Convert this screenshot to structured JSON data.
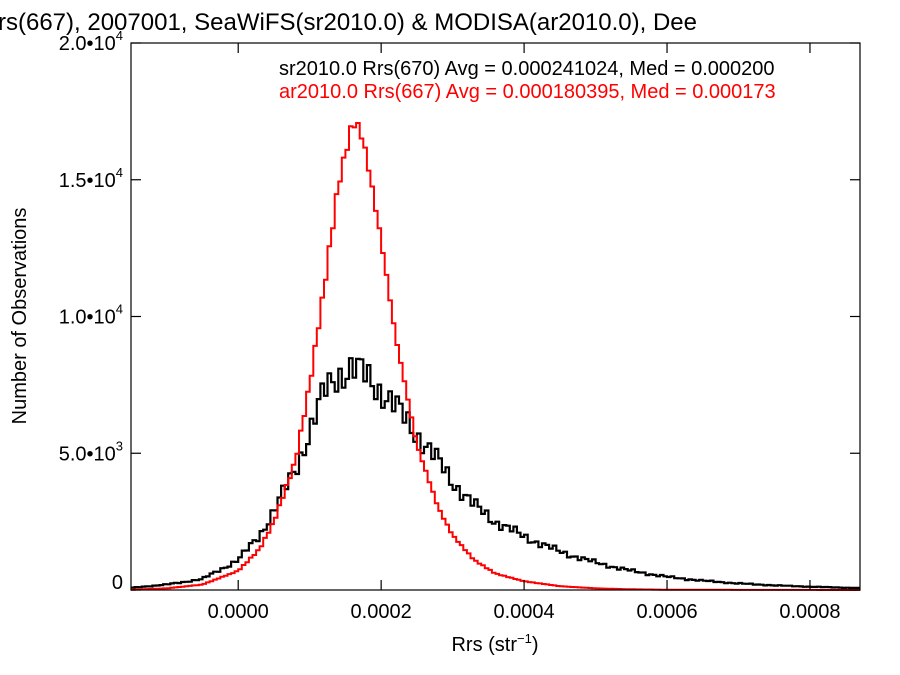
{
  "chart_data": {
    "type": "histogram-step",
    "title": "rs(667), 2007001, SeaWiFS(sr2010.0) & MODISA(ar2010.0), Dee",
    "xlabel": "Rrs (str",
    "xlabel_sup": "−1",
    "xlabel_close": ")",
    "ylabel": "Number of Observations",
    "xlim": [
      -0.00015,
      0.00087
    ],
    "ylim": [
      0,
      20000
    ],
    "x_ticks": [
      {
        "value": 0.0,
        "label": "0.0000"
      },
      {
        "value": 0.0002,
        "label": "0.0002"
      },
      {
        "value": 0.0004,
        "label": "0.0004"
      },
      {
        "value": 0.0006,
        "label": "0.0006"
      },
      {
        "value": 0.0008,
        "label": "0.0008"
      }
    ],
    "y_ticks": [
      {
        "value": 0,
        "mant": "0",
        "exp": ""
      },
      {
        "value": 5000,
        "mant": "5.0•10",
        "exp": "3"
      },
      {
        "value": 10000,
        "mant": "1.0•10",
        "exp": "4"
      },
      {
        "value": 15000,
        "mant": "1.5•10",
        "exp": "4"
      },
      {
        "value": 20000,
        "mant": "2.0•10",
        "exp": "4"
      }
    ],
    "bin_width": 5e-06,
    "legend": [
      {
        "text": "sr2010.0 Rrs(670) Avg = 0.000241024, Med = 0.000200",
        "color": "#000000"
      },
      {
        "text": "ar2010.0 Rrs(667) Avg = 0.000180395, Med = 0.000173",
        "color": "#ff0000"
      }
    ],
    "series": [
      {
        "name": "sr2010.0 Rrs(670)",
        "color": "#000000",
        "points": [
          [
            -0.00015,
            80
          ],
          [
            -0.0001,
            200
          ],
          [
            -5e-05,
            400
          ],
          [
            0.0,
            1100
          ],
          [
            3e-05,
            2000
          ],
          [
            5e-05,
            2900
          ],
          [
            8e-05,
            4400
          ],
          [
            0.0001,
            5800
          ],
          [
            0.00012,
            7200
          ],
          [
            0.00014,
            7900
          ],
          [
            0.00016,
            8100
          ],
          [
            0.00018,
            7800
          ],
          [
            0.0002,
            7300
          ],
          [
            0.00022,
            6700
          ],
          [
            0.00025,
            5700
          ],
          [
            0.00028,
            4700
          ],
          [
            0.0003,
            3950
          ],
          [
            0.00033,
            3100
          ],
          [
            0.00036,
            2500
          ],
          [
            0.0004,
            1950
          ],
          [
            0.00045,
            1400
          ],
          [
            0.0005,
            1000
          ],
          [
            0.00055,
            700
          ],
          [
            0.0006,
            480
          ],
          [
            0.00065,
            340
          ],
          [
            0.0007,
            240
          ],
          [
            0.00075,
            170
          ],
          [
            0.0008,
            120
          ],
          [
            0.00087,
            70
          ]
        ]
      },
      {
        "name": "ar2010.0 Rrs(667)",
        "color": "#ff0000",
        "points": [
          [
            -0.00015,
            10
          ],
          [
            -0.0001,
            60
          ],
          [
            -5e-05,
            200
          ],
          [
            0.0,
            700
          ],
          [
            3e-05,
            1500
          ],
          [
            5e-05,
            2500
          ],
          [
            8e-05,
            4700
          ],
          [
            0.0001,
            7500
          ],
          [
            0.00012,
            11000
          ],
          [
            0.00014,
            14800
          ],
          [
            0.00016,
            17100
          ],
          [
            0.00017,
            16900
          ],
          [
            0.00018,
            15800
          ],
          [
            0.0002,
            12800
          ],
          [
            0.00022,
            9300
          ],
          [
            0.00025,
            5300
          ],
          [
            0.00028,
            3000
          ],
          [
            0.0003,
            2000
          ],
          [
            0.00033,
            1100
          ],
          [
            0.00036,
            600
          ],
          [
            0.0004,
            320
          ],
          [
            0.00045,
            140
          ],
          [
            0.0005,
            60
          ],
          [
            0.00055,
            25
          ],
          [
            0.0006,
            10
          ],
          [
            0.0007,
            5
          ],
          [
            0.00087,
            0
          ]
        ]
      }
    ]
  }
}
